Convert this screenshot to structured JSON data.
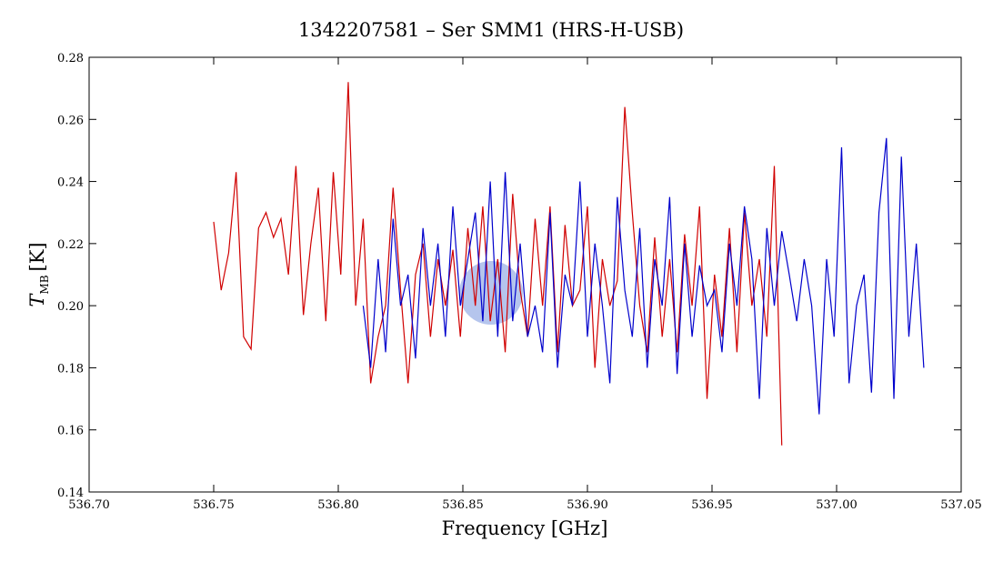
{
  "chart_data": {
    "type": "line",
    "title": "1342207581 – Ser SMM1 (HRS-H-USB)",
    "x_label": "Frequency [GHz]",
    "y_label": {
      "symbol": "T",
      "subscript": "MB",
      "unit": "[K]"
    },
    "xlim": [
      536.7,
      537.05
    ],
    "xticks": [
      {
        "value": 536.7,
        "label": "536.70"
      },
      536.75,
      {
        "value": 536.8,
        "label": "536.80"
      },
      536.85,
      {
        "value": 536.9,
        "label": "536.90"
      },
      536.95,
      {
        "value": 537.0,
        "label": "537.00"
      },
      537.05
    ],
    "ylim": [
      0.14,
      0.28
    ],
    "yticks": [
      0.14,
      0.16,
      0.18,
      {
        "value": 0.2,
        "label": "0.20"
      },
      0.22,
      0.24,
      0.26,
      0.28
    ],
    "series": [
      {
        "color": "#d00000",
        "x": [
          536.75,
          536.753,
          536.756,
          536.759,
          536.762,
          536.765,
          536.768,
          536.771,
          536.774,
          536.777,
          536.78,
          536.783,
          536.786,
          536.789,
          536.792,
          536.795,
          536.798,
          536.801,
          536.804,
          536.807,
          536.81,
          536.813,
          536.816,
          536.819,
          536.822,
          536.825,
          536.828,
          536.831,
          536.834,
          536.837,
          536.84,
          536.843,
          536.846,
          536.849,
          536.852,
          536.855,
          536.858,
          536.861,
          536.864,
          536.867,
          536.87,
          536.873,
          536.876,
          536.879,
          536.882,
          536.885,
          536.888,
          536.891,
          536.894,
          536.897,
          536.9,
          536.903,
          536.906,
          536.909,
          536.912,
          536.915,
          536.918,
          536.921,
          536.924,
          536.927,
          536.93,
          536.933,
          536.936,
          536.939,
          536.942,
          536.945,
          536.948,
          536.951,
          536.954,
          536.957,
          536.96,
          536.963,
          536.966,
          536.969,
          536.972,
          536.975,
          536.978
        ],
        "values": [
          0.227,
          0.205,
          0.217,
          0.243,
          0.19,
          0.186,
          0.225,
          0.23,
          0.222,
          0.228,
          0.21,
          0.245,
          0.197,
          0.22,
          0.238,
          0.195,
          0.243,
          0.21,
          0.272,
          0.2,
          0.228,
          0.175,
          0.19,
          0.2,
          0.238,
          0.205,
          0.175,
          0.21,
          0.22,
          0.19,
          0.215,
          0.2,
          0.218,
          0.19,
          0.225,
          0.2,
          0.232,
          0.195,
          0.215,
          0.185,
          0.236,
          0.205,
          0.19,
          0.228,
          0.2,
          0.232,
          0.185,
          0.226,
          0.2,
          0.205,
          0.232,
          0.18,
          0.215,
          0.2,
          0.208,
          0.264,
          0.23,
          0.2,
          0.185,
          0.222,
          0.19,
          0.215,
          0.185,
          0.223,
          0.2,
          0.232,
          0.17,
          0.21,
          0.19,
          0.225,
          0.185,
          0.23,
          0.2,
          0.215,
          0.19,
          0.245,
          0.155
        ]
      },
      {
        "color": "#0000cc",
        "x": [
          536.81,
          536.813,
          536.816,
          536.819,
          536.822,
          536.825,
          536.828,
          536.831,
          536.834,
          536.837,
          536.84,
          536.843,
          536.846,
          536.849,
          536.852,
          536.855,
          536.858,
          536.861,
          536.864,
          536.867,
          536.87,
          536.873,
          536.876,
          536.879,
          536.882,
          536.885,
          536.888,
          536.891,
          536.894,
          536.897,
          536.9,
          536.903,
          536.906,
          536.909,
          536.912,
          536.915,
          536.918,
          536.921,
          536.924,
          536.927,
          536.93,
          536.933,
          536.936,
          536.939,
          536.942,
          536.945,
          536.948,
          536.951,
          536.954,
          536.957,
          536.96,
          536.963,
          536.966,
          536.969,
          536.972,
          536.975,
          536.978,
          536.981,
          536.984,
          536.987,
          536.99,
          536.993,
          536.996,
          536.999,
          537.002,
          537.005,
          537.008,
          537.011,
          537.014,
          537.017,
          537.02,
          537.023,
          537.026,
          537.029,
          537.032,
          537.035
        ],
        "values": [
          0.2,
          0.18,
          0.215,
          0.185,
          0.228,
          0.2,
          0.21,
          0.183,
          0.225,
          0.2,
          0.22,
          0.19,
          0.232,
          0.2,
          0.215,
          0.23,
          0.195,
          0.24,
          0.19,
          0.243,
          0.195,
          0.22,
          0.19,
          0.2,
          0.185,
          0.23,
          0.18,
          0.21,
          0.2,
          0.24,
          0.19,
          0.22,
          0.2,
          0.175,
          0.235,
          0.205,
          0.19,
          0.225,
          0.18,
          0.215,
          0.2,
          0.235,
          0.178,
          0.22,
          0.19,
          0.213,
          0.2,
          0.205,
          0.185,
          0.22,
          0.2,
          0.232,
          0.215,
          0.17,
          0.225,
          0.2,
          0.224,
          0.21,
          0.195,
          0.215,
          0.2,
          0.165,
          0.215,
          0.19,
          0.251,
          0.175,
          0.2,
          0.21,
          0.172,
          0.23,
          0.254,
          0.17,
          0.248,
          0.19,
          0.22,
          0.18
        ]
      }
    ]
  }
}
